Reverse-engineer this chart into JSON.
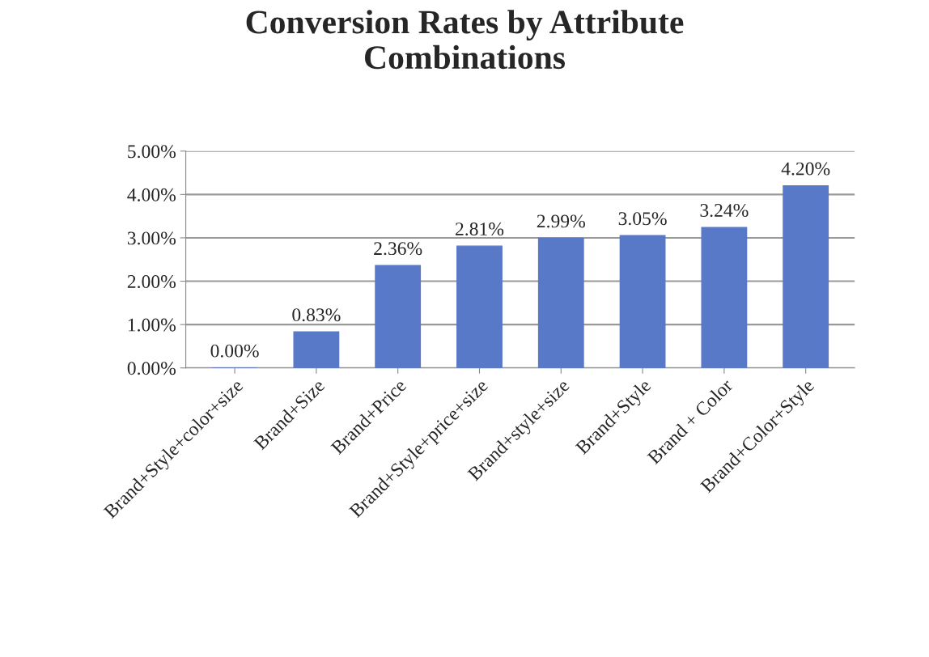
{
  "chart_data": {
    "type": "bar",
    "title": "Conversion Rates by Attribute\nCombinations",
    "categories": [
      "Brand+Style+color+size",
      "Brand+Size",
      "Brand+Price",
      "Brand+Style+price+size",
      "Brand+style+size",
      "Brand+Style",
      "Brand + Color",
      "Brand+Color+Style"
    ],
    "values": [
      0.0,
      0.83,
      2.36,
      2.81,
      2.99,
      3.05,
      3.24,
      4.2
    ],
    "value_labels": [
      "0.00%",
      "0.83%",
      "2.36%",
      "2.81%",
      "2.99%",
      "3.05%",
      "3.24%",
      "4.20%"
    ],
    "color": "#5878c8",
    "ylim": [
      0,
      5
    ],
    "yticks": [
      {
        "value": 0,
        "label": "0.00%"
      },
      {
        "value": 1,
        "label": "1.00%"
      },
      {
        "value": 2,
        "label": "2.00%"
      },
      {
        "value": 3,
        "label": "3.00%"
      },
      {
        "value": 4,
        "label": "4.00%"
      },
      {
        "value": 5,
        "label": "5.00%"
      }
    ],
    "grid": "y"
  }
}
